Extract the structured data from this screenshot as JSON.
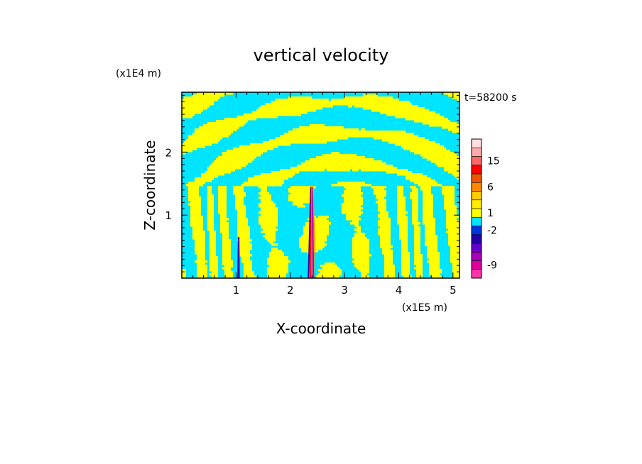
{
  "chart_data": {
    "type": "heatmap",
    "title": "vertical velocity",
    "xlabel": "X-coordinate",
    "ylabel": "Z-coordinate",
    "x_unit_label": "(x1E5 m)",
    "y_unit_label": "(x1E4 m)",
    "time_label": "t=58200 s",
    "xlim": [
      0,
      5.12
    ],
    "ylim": [
      0,
      2.95
    ],
    "x_ticks": [
      "1",
      "2",
      "3",
      "4",
      "5"
    ],
    "x_tick_values": [
      1,
      2,
      3,
      4,
      5
    ],
    "y_ticks": [
      "1",
      "2"
    ],
    "y_tick_values": [
      1,
      2
    ],
    "grid": false,
    "field_colors": {
      "positive": "#ffff00",
      "negative": "#00e5ff"
    },
    "colorbar": {
      "levels": [
        {
          "color": "#ff33aa"
        },
        {
          "color": "#dd0099"
        },
        {
          "color": "#aa00bb"
        },
        {
          "color": "#6600cc"
        },
        {
          "color": "#2200aa"
        },
        {
          "color": "#0033dd"
        },
        {
          "color": "#00e5ff"
        },
        {
          "color": "#ffff00"
        },
        {
          "color": "#ffee00"
        },
        {
          "color": "#ffcc00"
        },
        {
          "color": "#ff8800"
        },
        {
          "color": "#ee5500"
        },
        {
          "color": "#ff0000"
        },
        {
          "color": "#ff6666"
        },
        {
          "color": "#ffaaaa"
        },
        {
          "color": "#ffe0e0"
        }
      ],
      "labels": [
        "-9",
        "-2",
        "1",
        "6",
        "15"
      ]
    },
    "features": [
      {
        "name": "central jet",
        "x": 2.4,
        "z_top": 1.45
      },
      {
        "name": "secondary jet",
        "x": 1.05,
        "z_top": 0.65
      }
    ]
  }
}
